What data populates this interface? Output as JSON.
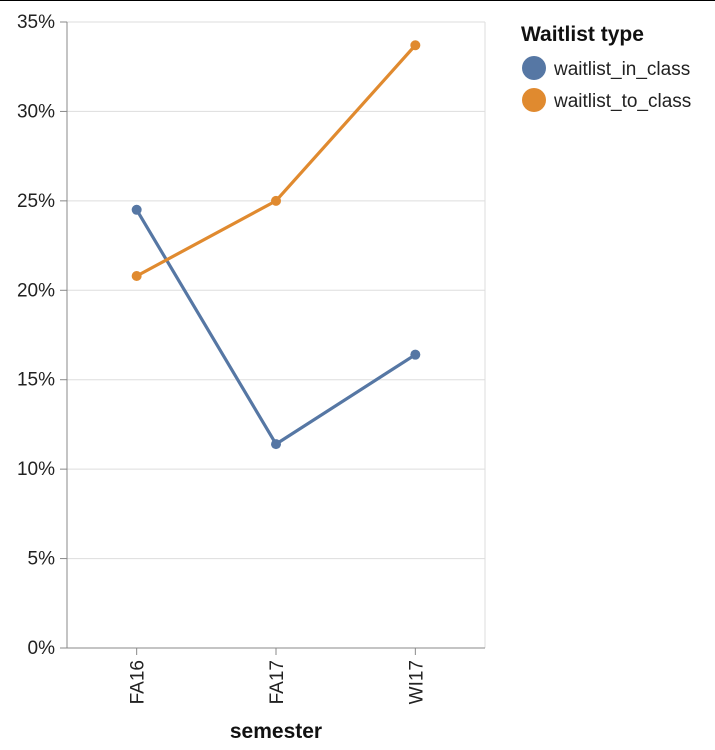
{
  "chart_data": {
    "type": "line",
    "xlabel": "semester",
    "ylabel": "",
    "categories": [
      "FA16",
      "FA17",
      "WI17"
    ],
    "ylim": [
      0,
      35
    ],
    "yticks": [
      "0%",
      "5%",
      "10%",
      "15%",
      "20%",
      "25%",
      "30%",
      "35%"
    ],
    "grid": true,
    "legend": {
      "title": "Waitlist type",
      "placement": "top-right"
    },
    "series": [
      {
        "name": "waitlist_in_class",
        "color": "#5677a4",
        "values": [
          24.5,
          11.4,
          16.4
        ]
      },
      {
        "name": "waitlist_to_class",
        "color": "#e08a2f",
        "values": [
          20.8,
          25.0,
          33.7
        ]
      }
    ]
  }
}
